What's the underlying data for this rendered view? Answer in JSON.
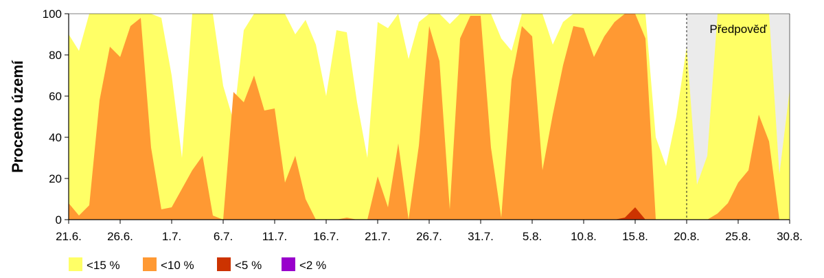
{
  "chart_data": {
    "type": "area",
    "title": "",
    "xlabel": "",
    "ylabel": "Procento území",
    "ylim": [
      0,
      100
    ],
    "yticks": [
      0,
      20,
      40,
      60,
      80,
      100
    ],
    "xlim": [
      "2023-06-21",
      "2023-08-30"
    ],
    "xtick_labels": [
      "21.6.",
      "26.6.",
      "1.7.",
      "6.7.",
      "11.7.",
      "16.7.",
      "21.7.",
      "26.7.",
      "31.7.",
      "5.8.",
      "10.8.",
      "15.8.",
      "20.8.",
      "25.8.",
      "30.8."
    ],
    "forecast": {
      "label": "Předpověď",
      "start": "2023-08-20",
      "end": "2023-08-30",
      "fill": "#ebebeb"
    },
    "grid": false,
    "legend_position": "bottom-left",
    "x": [
      "21.6.",
      "22.6.",
      "23.6.",
      "24.6.",
      "25.6.",
      "26.6.",
      "27.6.",
      "28.6.",
      "29.6.",
      "30.6.",
      "1.7.",
      "2.7.",
      "3.7.",
      "4.7.",
      "5.7.",
      "6.7.",
      "7.7.",
      "8.7.",
      "9.7.",
      "10.7.",
      "11.7.",
      "12.7.",
      "13.7.",
      "14.7.",
      "15.7.",
      "16.7.",
      "17.7.",
      "18.7.",
      "19.7.",
      "20.7.",
      "21.7.",
      "22.7.",
      "23.7.",
      "24.7.",
      "25.7.",
      "26.7.",
      "27.7.",
      "28.7.",
      "29.7.",
      "30.7.",
      "31.7.",
      "1.8.",
      "2.8.",
      "3.8.",
      "4.8.",
      "5.8.",
      "6.8.",
      "7.8.",
      "8.8.",
      "9.8.",
      "10.8.",
      "11.8.",
      "12.8.",
      "13.8.",
      "14.8.",
      "15.8.",
      "16.8.",
      "17.8.",
      "18.8.",
      "19.8.",
      "20.8.",
      "21.8.",
      "22.8.",
      "23.8.",
      "24.8.",
      "25.8.",
      "26.8.",
      "27.8.",
      "28.8.",
      "29.8.",
      "30.8."
    ],
    "series": [
      {
        "name": "<15 %",
        "color": "#ffff66",
        "values": [
          90,
          82,
          100,
          100,
          100,
          100,
          100,
          100,
          100,
          98,
          70,
          30,
          100,
          100,
          100,
          65,
          48,
          92,
          100,
          100,
          100,
          100,
          90,
          97,
          85,
          60,
          92,
          91,
          57,
          30,
          96,
          93,
          100,
          78,
          96,
          100,
          100,
          95,
          100,
          100,
          100,
          100,
          88,
          82,
          100,
          100,
          100,
          85,
          96,
          100,
          100,
          100,
          100,
          100,
          100,
          100,
          100,
          40,
          26,
          50,
          84,
          17,
          31,
          100,
          100,
          100,
          100,
          100,
          100,
          22,
          63
        ]
      },
      {
        "name": "<10 %",
        "color": "#ff9933",
        "values": [
          8,
          2,
          7,
          58,
          84,
          79,
          94,
          98,
          35,
          5,
          6,
          15,
          24,
          31,
          2,
          0,
          62,
          57,
          70,
          53,
          54,
          18,
          31,
          10,
          0,
          0,
          0,
          1,
          0,
          0,
          21,
          6,
          37,
          0,
          36,
          94,
          77,
          5,
          88,
          99,
          99,
          35,
          1,
          68,
          94,
          89,
          24,
          51,
          75,
          94,
          93,
          79,
          89,
          96,
          100,
          100,
          88,
          0,
          0,
          0,
          0,
          0,
          0,
          3,
          8,
          18,
          24,
          51,
          38,
          0,
          0
        ]
      },
      {
        "name": "<5 %",
        "color": "#cc3300",
        "values": [
          0,
          0,
          0,
          0,
          0,
          0,
          0,
          0,
          0,
          0,
          0,
          0,
          0,
          0,
          0,
          0,
          0,
          0,
          0,
          0,
          0,
          0,
          0,
          0,
          0,
          0,
          0,
          0,
          0,
          0,
          0,
          0,
          0,
          0,
          0,
          0,
          0,
          0,
          0,
          0,
          0,
          0,
          0,
          0,
          0,
          0,
          0,
          0,
          0,
          0,
          0,
          0,
          0,
          0,
          1,
          6,
          0,
          0,
          0,
          0,
          0,
          0,
          0,
          0,
          0,
          0,
          0,
          0,
          0,
          0,
          0
        ]
      },
      {
        "name": "<2 %",
        "color": "#9900cc",
        "values": [
          0,
          0,
          0,
          0,
          0,
          0,
          0,
          0,
          0,
          0,
          0,
          0,
          0,
          0,
          0,
          0,
          0,
          0,
          0,
          0,
          0,
          0,
          0,
          0,
          0,
          0,
          0,
          0,
          0,
          0,
          0,
          0,
          0,
          0,
          0,
          0,
          0,
          0,
          0,
          0,
          0,
          0,
          0,
          0,
          0,
          0,
          0,
          0,
          0,
          0,
          0,
          0,
          0,
          0,
          0,
          0,
          0,
          0,
          0,
          0,
          0,
          0,
          0,
          0,
          0,
          0,
          0,
          0,
          0,
          0,
          0
        ]
      }
    ]
  }
}
